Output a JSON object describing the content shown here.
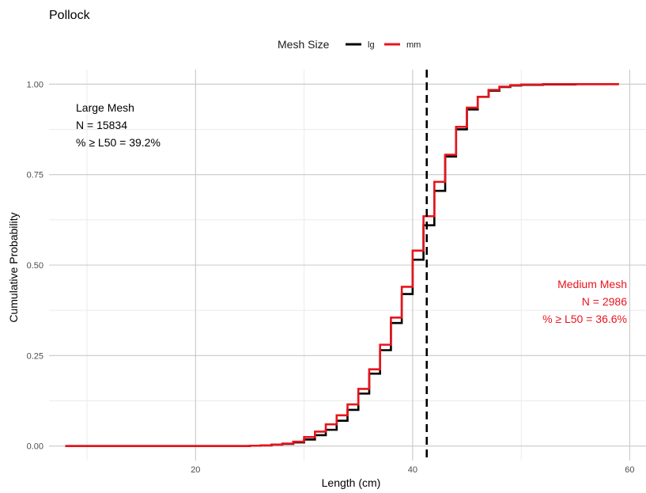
{
  "chart_data": {
    "type": "line",
    "step": true,
    "title": "Pollock",
    "xlabel": "Length (cm)",
    "ylabel": "Cumulative Probability",
    "xlim": [
      6.5,
      61.5
    ],
    "ylim": [
      -0.04,
      1.04
    ],
    "x_ticks": [
      20,
      40,
      60
    ],
    "y_ticks": [
      0.0,
      0.25,
      0.5,
      0.75,
      1.0
    ],
    "y_tick_labels": [
      "0.00",
      "0.25",
      "0.50",
      "0.75",
      "1.00"
    ],
    "x_minor_ticks": [
      10,
      30,
      50
    ],
    "y_minor_ticks": [
      0.125,
      0.375,
      0.625,
      0.875
    ],
    "legend": {
      "title": "Mesh Size",
      "position": "top",
      "entries": [
        "lg",
        "mm"
      ]
    },
    "reference_line": {
      "x": 41.3,
      "style": "dashed",
      "color": "#000000"
    },
    "series": [
      {
        "name": "lg",
        "color": "#000000",
        "x": [
          8,
          25,
          26,
          27,
          28,
          29,
          30,
          31,
          32,
          33,
          34,
          35,
          36,
          37,
          38,
          39,
          40,
          41,
          42,
          43,
          44,
          45,
          46,
          47,
          48,
          49,
          50,
          52,
          55,
          59
        ],
        "y": [
          0.0,
          0.001,
          0.002,
          0.004,
          0.006,
          0.01,
          0.018,
          0.03,
          0.045,
          0.07,
          0.1,
          0.145,
          0.2,
          0.265,
          0.34,
          0.42,
          0.515,
          0.61,
          0.705,
          0.8,
          0.875,
          0.93,
          0.965,
          0.982,
          0.992,
          0.996,
          0.998,
          0.999,
          1.0,
          1.0
        ]
      },
      {
        "name": "mm",
        "color": "#e8141c",
        "x": [
          8,
          25,
          26,
          27,
          28,
          29,
          30,
          31,
          32,
          33,
          34,
          35,
          36,
          37,
          38,
          39,
          40,
          41,
          42,
          43,
          44,
          45,
          46,
          47,
          48,
          49,
          50,
          52,
          55,
          59
        ],
        "y": [
          0.0,
          0.001,
          0.002,
          0.004,
          0.007,
          0.012,
          0.025,
          0.04,
          0.06,
          0.085,
          0.115,
          0.158,
          0.212,
          0.28,
          0.355,
          0.44,
          0.54,
          0.635,
          0.73,
          0.805,
          0.882,
          0.935,
          0.965,
          0.984,
          0.993,
          0.997,
          0.999,
          1.0,
          1.0,
          1.0
        ]
      }
    ],
    "annotations": [
      {
        "name": "large-mesh",
        "color": "#000000",
        "anchor": "start",
        "lines": [
          "Large Mesh",
          "N = 15834",
          "% ≥ L50 = 39.2%"
        ]
      },
      {
        "name": "medium-mesh",
        "color": "#e8141c",
        "anchor": "end",
        "lines": [
          "Medium Mesh",
          "N = 2986",
          "% ≥ L50 = 36.6%"
        ]
      }
    ]
  }
}
